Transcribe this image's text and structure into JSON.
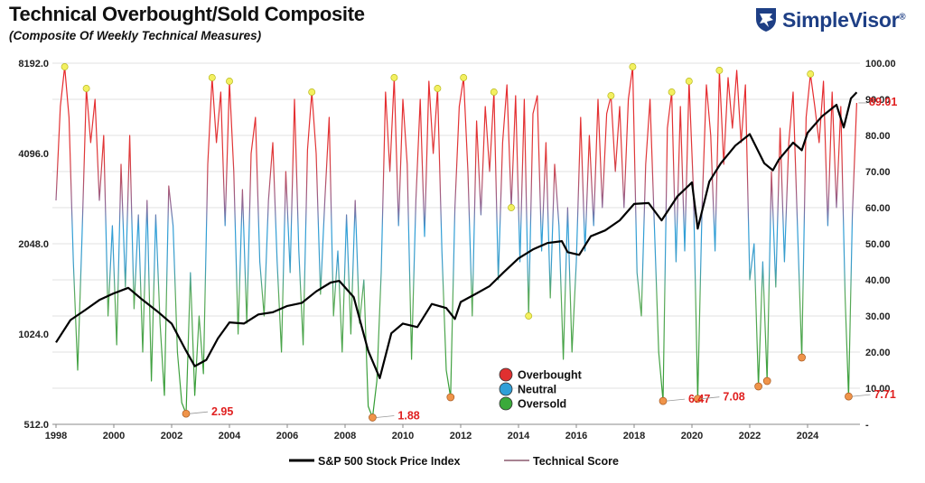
{
  "title": "Technical Overbought/Sold Composite",
  "subtitle": "(Composite Of Weekly Technical Measures)",
  "logo": {
    "brand": "SimpleVisor",
    "mark": "®",
    "icon": "eagle-shield-icon",
    "color": "#1e3f85"
  },
  "chart_data": {
    "type": "line",
    "title": "Technical Overbought/Sold Composite",
    "subtitle": "(Composite Of Weekly Technical Measures)",
    "x_ticks": [
      "1998",
      "2000",
      "2002",
      "2004",
      "2006",
      "2008",
      "2010",
      "2012",
      "2014",
      "2016",
      "2018",
      "2020",
      "2022",
      "2024"
    ],
    "left_axis": {
      "scale": "log2",
      "ticks": [
        "8192.0",
        "4096.0",
        "2048.0",
        "1024.0",
        "512.0"
      ],
      "range": [
        512,
        8192
      ]
    },
    "right_axis": {
      "ticks": [
        "100.00",
        "90.00",
        "80.00",
        "70.00",
        "60.00",
        "50.00",
        "40.00",
        "30.00",
        "20.00",
        "10.00",
        "-"
      ],
      "range": [
        0,
        100
      ]
    },
    "zone_legend": [
      {
        "label": "Overbought",
        "color": "#e03030"
      },
      {
        "label": "Neutral",
        "color": "#2f9fd8"
      },
      {
        "label": "Oversold",
        "color": "#3aaa3a"
      }
    ],
    "series": [
      {
        "name": "S&P 500 Stock Price Index",
        "axis": "left",
        "color": "#000000",
        "points": [
          [
            1998.0,
            960
          ],
          [
            1998.5,
            1140
          ],
          [
            1999.0,
            1230
          ],
          [
            1999.5,
            1330
          ],
          [
            2000.0,
            1400
          ],
          [
            2000.5,
            1460
          ],
          [
            2001.0,
            1330
          ],
          [
            2001.5,
            1220
          ],
          [
            2002.0,
            1110
          ],
          [
            2002.5,
            900
          ],
          [
            2002.8,
            800
          ],
          [
            2003.2,
            840
          ],
          [
            2003.6,
            990
          ],
          [
            2004.0,
            1120
          ],
          [
            2004.5,
            1110
          ],
          [
            2005.0,
            1190
          ],
          [
            2005.5,
            1210
          ],
          [
            2006.0,
            1270
          ],
          [
            2006.5,
            1300
          ],
          [
            2007.0,
            1420
          ],
          [
            2007.5,
            1520
          ],
          [
            2007.8,
            1540
          ],
          [
            2008.3,
            1360
          ],
          [
            2008.8,
            900
          ],
          [
            2009.2,
            730
          ],
          [
            2009.6,
            1030
          ],
          [
            2010.0,
            1110
          ],
          [
            2010.5,
            1080
          ],
          [
            2011.0,
            1290
          ],
          [
            2011.5,
            1250
          ],
          [
            2011.8,
            1150
          ],
          [
            2012.0,
            1310
          ],
          [
            2012.5,
            1390
          ],
          [
            2013.0,
            1480
          ],
          [
            2013.5,
            1650
          ],
          [
            2014.0,
            1830
          ],
          [
            2014.5,
            1960
          ],
          [
            2015.0,
            2060
          ],
          [
            2015.5,
            2090
          ],
          [
            2015.7,
            1920
          ],
          [
            2016.1,
            1880
          ],
          [
            2016.5,
            2170
          ],
          [
            2017.0,
            2270
          ],
          [
            2017.5,
            2450
          ],
          [
            2018.0,
            2780
          ],
          [
            2018.5,
            2800
          ],
          [
            2018.95,
            2450
          ],
          [
            2019.5,
            2950
          ],
          [
            2020.0,
            3280
          ],
          [
            2020.2,
            2300
          ],
          [
            2020.6,
            3300
          ],
          [
            2021.0,
            3800
          ],
          [
            2021.5,
            4350
          ],
          [
            2022.0,
            4750
          ],
          [
            2022.5,
            3800
          ],
          [
            2022.8,
            3600
          ],
          [
            2023.0,
            3900
          ],
          [
            2023.5,
            4450
          ],
          [
            2023.8,
            4200
          ],
          [
            2024.0,
            4800
          ],
          [
            2024.5,
            5450
          ],
          [
            2025.0,
            5950
          ],
          [
            2025.25,
            5000
          ],
          [
            2025.5,
            6250
          ],
          [
            2025.7,
            6550
          ]
        ]
      },
      {
        "name": "Technical Score",
        "axis": "right",
        "color": "#8b5a6e",
        "points": [
          [
            1998.0,
            62
          ],
          [
            1998.15,
            88
          ],
          [
            1998.3,
            99
          ],
          [
            1998.45,
            85
          ],
          [
            1998.6,
            45
          ],
          [
            1998.75,
            15
          ],
          [
            1998.9,
            52
          ],
          [
            1999.05,
            93
          ],
          [
            1999.2,
            78
          ],
          [
            1999.35,
            90
          ],
          [
            1999.5,
            62
          ],
          [
            1999.65,
            80
          ],
          [
            1999.8,
            30
          ],
          [
            1999.95,
            55
          ],
          [
            2000.1,
            22
          ],
          [
            2000.25,
            72
          ],
          [
            2000.4,
            38
          ],
          [
            2000.55,
            80
          ],
          [
            2000.7,
            32
          ],
          [
            2000.85,
            58
          ],
          [
            2001.0,
            20
          ],
          [
            2001.15,
            62
          ],
          [
            2001.3,
            12
          ],
          [
            2001.45,
            58
          ],
          [
            2001.6,
            28
          ],
          [
            2001.75,
            8
          ],
          [
            2001.9,
            66
          ],
          [
            2002.05,
            55
          ],
          [
            2002.2,
            20
          ],
          [
            2002.35,
            6
          ],
          [
            2002.5,
            2.95
          ],
          [
            2002.65,
            42
          ],
          [
            2002.8,
            8
          ],
          [
            2002.95,
            30
          ],
          [
            2003.1,
            14
          ],
          [
            2003.25,
            72
          ],
          [
            2003.4,
            96
          ],
          [
            2003.55,
            78
          ],
          [
            2003.7,
            92
          ],
          [
            2003.85,
            55
          ],
          [
            2004.0,
            95
          ],
          [
            2004.15,
            70
          ],
          [
            2004.3,
            25
          ],
          [
            2004.45,
            65
          ],
          [
            2004.6,
            28
          ],
          [
            2004.75,
            75
          ],
          [
            2004.9,
            85
          ],
          [
            2005.05,
            45
          ],
          [
            2005.2,
            30
          ],
          [
            2005.35,
            62
          ],
          [
            2005.5,
            78
          ],
          [
            2005.65,
            45
          ],
          [
            2005.8,
            20
          ],
          [
            2005.95,
            70
          ],
          [
            2006.1,
            42
          ],
          [
            2006.25,
            90
          ],
          [
            2006.4,
            48
          ],
          [
            2006.55,
            22
          ],
          [
            2006.7,
            76
          ],
          [
            2006.85,
            92
          ],
          [
            2007.0,
            75
          ],
          [
            2007.15,
            36
          ],
          [
            2007.3,
            62
          ],
          [
            2007.45,
            85
          ],
          [
            2007.6,
            30
          ],
          [
            2007.75,
            48
          ],
          [
            2007.9,
            20
          ],
          [
            2008.05,
            58
          ],
          [
            2008.2,
            25
          ],
          [
            2008.35,
            62
          ],
          [
            2008.5,
            28
          ],
          [
            2008.65,
            40
          ],
          [
            2008.8,
            5
          ],
          [
            2008.95,
            1.88
          ],
          [
            2009.1,
            12
          ],
          [
            2009.25,
            42
          ],
          [
            2009.4,
            92
          ],
          [
            2009.55,
            70
          ],
          [
            2009.7,
            96
          ],
          [
            2009.85,
            55
          ],
          [
            2010.0,
            90
          ],
          [
            2010.15,
            72
          ],
          [
            2010.3,
            18
          ],
          [
            2010.45,
            62
          ],
          [
            2010.6,
            90
          ],
          [
            2010.75,
            52
          ],
          [
            2010.9,
            95
          ],
          [
            2011.05,
            75
          ],
          [
            2011.2,
            93
          ],
          [
            2011.35,
            48
          ],
          [
            2011.5,
            15
          ],
          [
            2011.65,
            7.5
          ],
          [
            2011.8,
            60
          ],
          [
            2011.95,
            88
          ],
          [
            2012.1,
            96
          ],
          [
            2012.25,
            70
          ],
          [
            2012.4,
            30
          ],
          [
            2012.55,
            84
          ],
          [
            2012.7,
            58
          ],
          [
            2012.85,
            88
          ],
          [
            2013.0,
            70
          ],
          [
            2013.15,
            92
          ],
          [
            2013.3,
            40
          ],
          [
            2013.45,
            78
          ],
          [
            2013.6,
            94
          ],
          [
            2013.75,
            60
          ],
          [
            2013.9,
            91
          ],
          [
            2014.05,
            45
          ],
          [
            2014.2,
            90
          ],
          [
            2014.35,
            30
          ],
          [
            2014.5,
            86
          ],
          [
            2014.65,
            91
          ],
          [
            2014.8,
            48
          ],
          [
            2014.95,
            78
          ],
          [
            2015.1,
            35
          ],
          [
            2015.25,
            72
          ],
          [
            2015.4,
            55
          ],
          [
            2015.55,
            18
          ],
          [
            2015.7,
            60
          ],
          [
            2015.85,
            20
          ],
          [
            2016.0,
            45
          ],
          [
            2016.15,
            85
          ],
          [
            2016.3,
            48
          ],
          [
            2016.45,
            80
          ],
          [
            2016.6,
            55
          ],
          [
            2016.75,
            90
          ],
          [
            2016.9,
            60
          ],
          [
            2017.05,
            86
          ],
          [
            2017.2,
            91
          ],
          [
            2017.35,
            70
          ],
          [
            2017.5,
            88
          ],
          [
            2017.65,
            60
          ],
          [
            2017.8,
            90
          ],
          [
            2017.95,
            99
          ],
          [
            2018.1,
            42
          ],
          [
            2018.25,
            30
          ],
          [
            2018.4,
            72
          ],
          [
            2018.55,
            90
          ],
          [
            2018.7,
            55
          ],
          [
            2018.85,
            20
          ],
          [
            2019.0,
            6.47
          ],
          [
            2019.15,
            82
          ],
          [
            2019.3,
            92
          ],
          [
            2019.45,
            45
          ],
          [
            2019.6,
            88
          ],
          [
            2019.75,
            48
          ],
          [
            2019.9,
            95
          ],
          [
            2020.05,
            65
          ],
          [
            2020.2,
            7.08
          ],
          [
            2020.35,
            60
          ],
          [
            2020.5,
            94
          ],
          [
            2020.65,
            80
          ],
          [
            2020.8,
            48
          ],
          [
            2020.95,
            98
          ],
          [
            2021.1,
            72
          ],
          [
            2021.25,
            96
          ],
          [
            2021.4,
            82
          ],
          [
            2021.55,
            98
          ],
          [
            2021.7,
            78
          ],
          [
            2021.85,
            94
          ],
          [
            2022.0,
            40
          ],
          [
            2022.15,
            50
          ],
          [
            2022.3,
            10.5
          ],
          [
            2022.45,
            45
          ],
          [
            2022.6,
            12
          ],
          [
            2022.75,
            70
          ],
          [
            2022.9,
            38
          ],
          [
            2023.05,
            82
          ],
          [
            2023.2,
            45
          ],
          [
            2023.35,
            78
          ],
          [
            2023.5,
            92
          ],
          [
            2023.65,
            55
          ],
          [
            2023.8,
            18.5
          ],
          [
            2023.95,
            85
          ],
          [
            2024.1,
            97
          ],
          [
            2024.25,
            88
          ],
          [
            2024.4,
            78
          ],
          [
            2024.55,
            95
          ],
          [
            2024.7,
            55
          ],
          [
            2024.85,
            92
          ],
          [
            2025.0,
            60
          ],
          [
            2025.15,
            88
          ],
          [
            2025.3,
            35
          ],
          [
            2025.42,
            7.71
          ],
          [
            2025.55,
            58
          ],
          [
            2025.7,
            89.01
          ]
        ]
      }
    ],
    "peak_markers": [
      1998.3,
      1999.05,
      2003.4,
      2004.0,
      2006.85,
      2009.7,
      2011.2,
      2012.1,
      2013.15,
      2013.75,
      2014.35,
      2017.2,
      2017.95,
      2019.3,
      2019.9,
      2020.95,
      2024.1
    ],
    "trough_markers": [
      2002.5,
      2008.95,
      2011.65,
      2019.0,
      2020.2,
      2022.3,
      2022.6,
      2023.8,
      2025.42
    ],
    "annotations": [
      {
        "x": 2002.5,
        "value": 2.95,
        "text": "2.95"
      },
      {
        "x": 2008.95,
        "value": 1.88,
        "text": "1.88"
      },
      {
        "x": 2019.0,
        "value": 6.47,
        "text": "6.47"
      },
      {
        "x": 2020.2,
        "value": 7.08,
        "text": "7.08"
      },
      {
        "x": 2025.42,
        "value": 7.71,
        "text": "7.71"
      },
      {
        "x": 2025.7,
        "value": 89.01,
        "text": "89.01"
      }
    ],
    "legend": [
      "S&P 500 Stock Price Index",
      "Technical Score"
    ],
    "legend_position": "bottom-center",
    "grid": "horizontal"
  }
}
